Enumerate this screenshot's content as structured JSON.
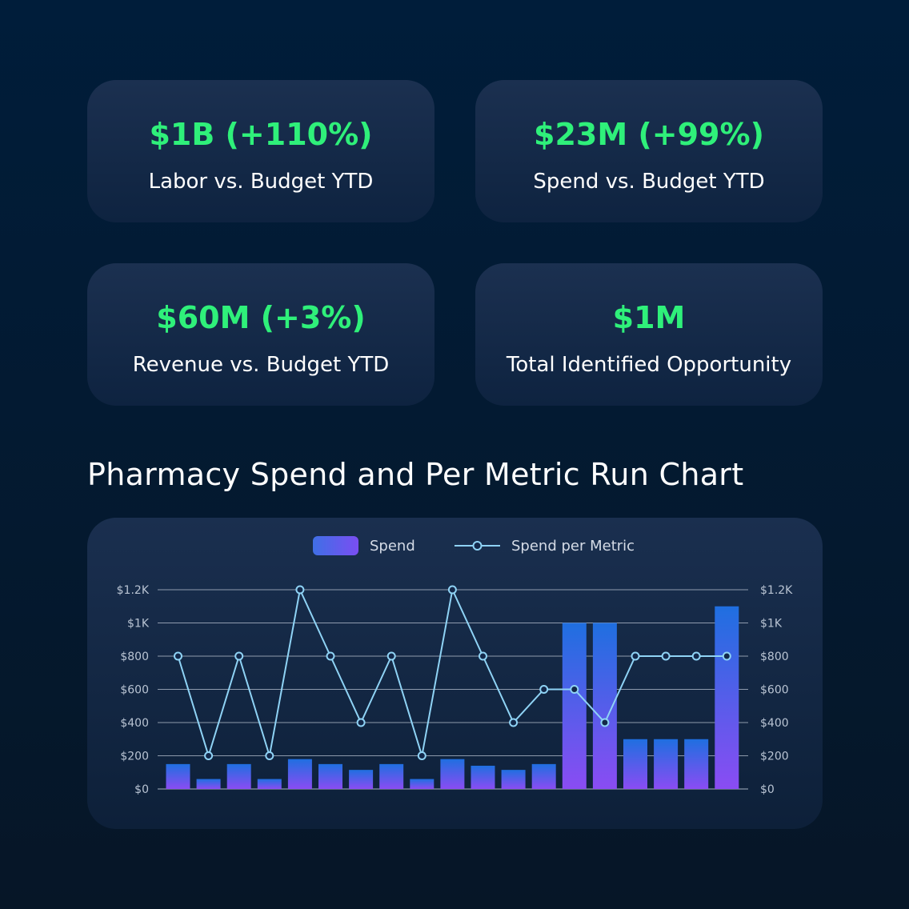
{
  "kpis": [
    {
      "value": "$1B (+110%)",
      "label": "Labor vs. Budget YTD"
    },
    {
      "value": "$23M (+99%)",
      "label": "Spend vs. Budget YTD"
    },
    {
      "value": "$60M (+3%)",
      "label": "Revenue vs. Budget YTD"
    },
    {
      "value": "$1M",
      "label": "Total Identified Opportunity"
    }
  ],
  "colors": {
    "kpi_value": "#2ff07a",
    "bar_top": "#1f6fe0",
    "bar_bottom": "#8a4cf3",
    "line": "#8fd3f5",
    "grid": "#b8c2d0"
  },
  "chart_data": {
    "type": "bar",
    "title": "Pharmacy Spend and Per Metric Run Chart",
    "legend": [
      "Spend",
      "Spend per Metric"
    ],
    "legend_position": "top-center",
    "grid": true,
    "ylim": [
      0,
      1200
    ],
    "y_ticks": [
      "$0",
      "$200",
      "$400",
      "$600",
      "$800",
      "$1K",
      "$1.2K"
    ],
    "y_tick_values": [
      0,
      200,
      400,
      600,
      800,
      1000,
      1200
    ],
    "series": [
      {
        "name": "Spend",
        "type": "bar",
        "values": [
          150,
          60,
          150,
          60,
          180,
          150,
          115,
          150,
          60,
          180,
          140,
          115,
          150,
          1000,
          1000,
          300,
          300,
          300,
          1100
        ]
      },
      {
        "name": "Spend per Metric",
        "type": "line",
        "values": [
          800,
          200,
          800,
          200,
          1200,
          800,
          400,
          800,
          200,
          1200,
          800,
          400,
          600,
          600,
          400,
          800,
          800,
          800,
          800
        ]
      }
    ]
  }
}
